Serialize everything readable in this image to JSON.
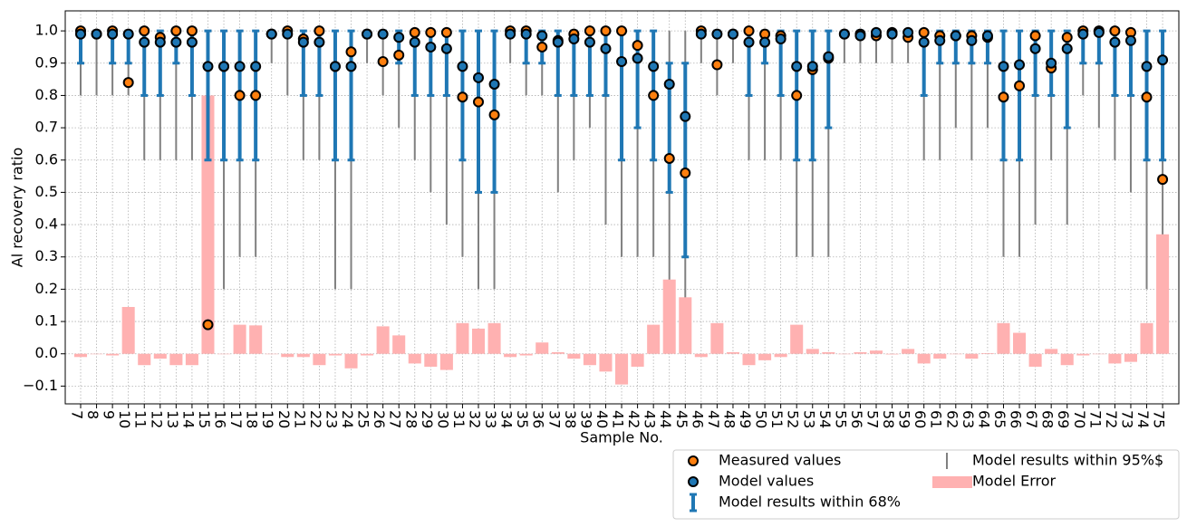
{
  "chart_data": {
    "type": "combo",
    "y_label": "Al recovery ratio",
    "x_label": "Sample No.",
    "categories": [
      "7",
      "8",
      "9",
      "10",
      "11",
      "12",
      "13",
      "14",
      "15",
      "16",
      "17",
      "18",
      "19",
      "20",
      "21",
      "22",
      "23",
      "24",
      "25",
      "26",
      "27",
      "28",
      "29",
      "30",
      "31",
      "32",
      "33",
      "34",
      "35",
      "36",
      "37",
      "38",
      "39",
      "40",
      "41",
      "42",
      "43",
      "44",
      "45",
      "46",
      "47",
      "48",
      "49",
      "50",
      "51",
      "52",
      "53",
      "54",
      "55",
      "56",
      "57",
      "58",
      "59",
      "60",
      "61",
      "62",
      "63",
      "64",
      "65",
      "66",
      "67",
      "68",
      "69",
      "70",
      "71",
      "72",
      "73",
      "74",
      "75"
    ],
    "ylim": [
      -0.155,
      1.062
    ],
    "yticks": [
      {
        "value": -0.1,
        "label": "−0.1"
      },
      {
        "value": 0,
        "label": "0.0"
      },
      {
        "value": 0.1,
        "label": "0.1"
      },
      {
        "value": 0.2,
        "label": "0.2"
      },
      {
        "value": 0.3,
        "label": "0.3"
      },
      {
        "value": 0.4,
        "label": "0.4"
      },
      {
        "value": 0.5,
        "label": "0.5"
      },
      {
        "value": 0.6,
        "label": "0.6"
      },
      {
        "value": 0.7,
        "label": "0.7"
      },
      {
        "value": 0.8,
        "label": "0.8"
      },
      {
        "value": 0.9,
        "label": "0.9"
      },
      {
        "value": 1.0,
        "label": "1.0"
      }
    ],
    "grid": true,
    "legend": "lower right",
    "series": [
      {
        "name": "Measured values",
        "type": "scatter",
        "color": "#ff7f0e",
        "values": [
          1.0,
          0.99,
          1.0,
          0.84,
          1.0,
          0.98,
          1.0,
          1.0,
          0.09,
          0.89,
          0.8,
          0.8,
          0.99,
          1.0,
          0.975,
          1.0,
          0.89,
          0.935,
          0.99,
          0.905,
          0.925,
          0.995,
          0.995,
          0.995,
          0.795,
          0.78,
          0.74,
          1.0,
          1.0,
          0.95,
          0.97,
          0.99,
          1.0,
          1.0,
          1.0,
          0.955,
          0.8,
          0.605,
          0.56,
          1.0,
          0.895,
          0.99,
          1.0,
          0.99,
          0.985,
          0.8,
          0.88,
          0.915,
          0.99,
          0.99,
          0.985,
          0.995,
          0.98,
          0.995,
          0.985,
          0.985,
          0.985,
          0.98,
          0.795,
          0.83,
          0.985,
          0.885,
          0.98,
          1.0,
          1.0,
          1.0,
          0.995,
          0.795,
          0.54
        ]
      },
      {
        "name": "Model values",
        "type": "scatter",
        "color": "#1f77b4",
        "values": [
          0.99,
          0.99,
          0.99,
          0.99,
          0.965,
          0.965,
          0.965,
          0.965,
          0.89,
          0.89,
          0.89,
          0.89,
          0.99,
          0.99,
          0.965,
          0.965,
          0.89,
          0.89,
          0.99,
          0.99,
          0.98,
          0.965,
          0.95,
          0.945,
          0.89,
          0.855,
          0.835,
          0.99,
          0.99,
          0.985,
          0.965,
          0.975,
          0.965,
          0.945,
          0.905,
          0.915,
          0.89,
          0.835,
          0.735,
          0.99,
          0.99,
          0.99,
          0.965,
          0.965,
          0.975,
          0.89,
          0.89,
          0.92,
          0.99,
          0.985,
          0.995,
          0.99,
          0.995,
          0.965,
          0.97,
          0.985,
          0.97,
          0.985,
          0.89,
          0.895,
          0.945,
          0.9,
          0.945,
          0.99,
          0.995,
          0.965,
          0.97,
          0.89,
          0.91
        ]
      },
      {
        "name": "Model results within 68%",
        "type": "errorbar",
        "color": "#1f77b4",
        "low": [
          0.9,
          1.0,
          0.9,
          0.9,
          0.8,
          0.8,
          0.9,
          0.8,
          0.6,
          0.6,
          0.6,
          0.6,
          1.0,
          1.0,
          0.8,
          0.8,
          0.6,
          0.6,
          1.0,
          1.0,
          0.9,
          0.8,
          0.8,
          0.8,
          0.6,
          0.5,
          0.5,
          1.0,
          0.9,
          0.9,
          0.8,
          0.8,
          0.8,
          0.8,
          0.6,
          0.7,
          0.6,
          0.5,
          0.3,
          1.0,
          1.0,
          1.0,
          0.8,
          0.9,
          0.8,
          0.6,
          0.6,
          0.7,
          1.0,
          1.0,
          1.0,
          1.0,
          1.0,
          0.8,
          0.9,
          0.9,
          0.9,
          0.9,
          0.6,
          0.6,
          0.8,
          0.8,
          0.7,
          0.9,
          0.9,
          0.8,
          0.8,
          0.6,
          0.6
        ],
        "high": [
          1.0,
          1.0,
          1.0,
          1.0,
          1.0,
          1.0,
          1.0,
          1.0,
          1.0,
          1.0,
          1.0,
          1.0,
          1.0,
          1.0,
          1.0,
          1.0,
          1.0,
          1.0,
          1.0,
          1.0,
          1.0,
          1.0,
          1.0,
          1.0,
          1.0,
          1.0,
          1.0,
          1.0,
          1.0,
          1.0,
          1.0,
          1.0,
          1.0,
          1.0,
          1.0,
          1.0,
          1.0,
          0.9,
          0.9,
          1.0,
          1.0,
          1.0,
          1.0,
          1.0,
          1.0,
          1.0,
          1.0,
          1.0,
          1.0,
          1.0,
          1.0,
          1.0,
          1.0,
          1.0,
          1.0,
          1.0,
          1.0,
          1.0,
          1.0,
          1.0,
          1.0,
          1.0,
          1.0,
          1.0,
          1.0,
          1.0,
          1.0,
          1.0,
          1.0
        ]
      },
      {
        "name": "Model results within 95%$",
        "type": "errorbar",
        "color": "#808080",
        "low": [
          0.8,
          0.8,
          0.8,
          0.8,
          0.6,
          0.6,
          0.6,
          0.6,
          0.3,
          0.2,
          0.3,
          0.3,
          0.9,
          0.8,
          0.6,
          0.6,
          0.2,
          0.2,
          0.9,
          0.8,
          0.7,
          0.6,
          0.5,
          0.4,
          0.3,
          0.2,
          0.2,
          0.9,
          0.8,
          0.8,
          0.5,
          0.6,
          0.7,
          0.4,
          0.3,
          0.3,
          0.3,
          0.1,
          0.1,
          0.9,
          0.8,
          0.9,
          0.6,
          0.6,
          0.6,
          0.3,
          0.3,
          0.3,
          0.9,
          0.9,
          0.9,
          0.9,
          0.9,
          0.6,
          0.6,
          0.7,
          0.6,
          0.7,
          0.3,
          0.3,
          0.4,
          0.6,
          0.4,
          0.8,
          0.7,
          0.6,
          0.5,
          0.2,
          0.2
        ],
        "high": [
          1.0,
          1.0,
          1.0,
          1.0,
          1.0,
          1.0,
          1.0,
          1.0,
          1.0,
          1.0,
          1.0,
          1.0,
          1.0,
          1.0,
          1.0,
          1.0,
          1.0,
          1.0,
          1.0,
          1.0,
          1.0,
          1.0,
          1.0,
          1.0,
          1.0,
          1.0,
          1.0,
          1.0,
          1.0,
          1.0,
          1.0,
          1.0,
          1.0,
          1.0,
          1.0,
          1.0,
          1.0,
          1.0,
          1.0,
          1.0,
          1.0,
          1.0,
          1.0,
          1.0,
          1.0,
          1.0,
          1.0,
          1.0,
          1.0,
          1.0,
          1.0,
          1.0,
          1.0,
          1.0,
          1.0,
          1.0,
          1.0,
          1.0,
          1.0,
          1.0,
          1.0,
          1.0,
          1.0,
          1.0,
          1.0,
          1.0,
          1.0,
          1.0,
          1.0
        ]
      },
      {
        "name": "Model Error",
        "type": "bar",
        "color": "#ffb1b1",
        "values": [
          -0.01,
          0,
          -0.005,
          0.145,
          -0.035,
          -0.015,
          -0.035,
          -0.035,
          0.8,
          0,
          0.09,
          0.088,
          0,
          -0.01,
          -0.01,
          -0.035,
          -0.005,
          -0.045,
          -0.005,
          0.085,
          0.057,
          -0.03,
          -0.04,
          -0.05,
          0.095,
          0.078,
          0.095,
          -0.01,
          -0.005,
          0.035,
          0.005,
          -0.015,
          -0.035,
          -0.055,
          -0.095,
          -0.04,
          0.09,
          0.23,
          0.175,
          -0.01,
          0.095,
          0.005,
          -0.035,
          -0.02,
          -0.01,
          0.09,
          0.015,
          0.005,
          0,
          0.005,
          0.01,
          -0.002,
          0.015,
          -0.03,
          -0.015,
          0,
          -0.015,
          0.002,
          0.095,
          0.065,
          -0.04,
          0.015,
          -0.035,
          -0.005,
          0,
          -0.03,
          -0.025,
          0.095,
          0.37
        ]
      }
    ]
  }
}
